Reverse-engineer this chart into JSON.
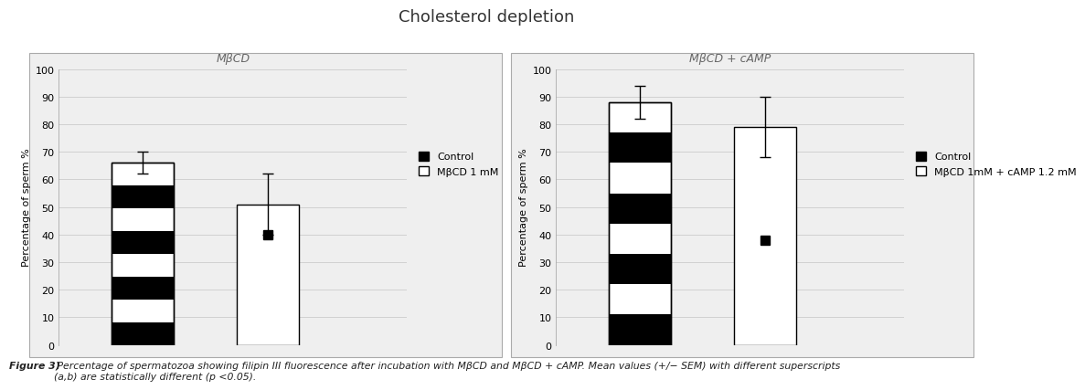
{
  "title": "Cholesterol depletion",
  "subplot1_title": "MβCD",
  "subplot2_title": "MβCD + cAMP",
  "ylabel": "Percentage of sperm %",
  "ylim": [
    0,
    100
  ],
  "yticks": [
    0,
    10,
    20,
    30,
    40,
    50,
    60,
    70,
    80,
    90,
    100
  ],
  "subplot1": {
    "bar1_value": 66,
    "bar1_error": 4,
    "bar2_value": 51,
    "bar2_error": 11,
    "bar2_marker": 40,
    "legend_label1": "Control",
    "legend_label2": "MβCD 1 mM"
  },
  "subplot2": {
    "bar1_value": 88,
    "bar1_error": 6,
    "bar2_value": 79,
    "bar2_error": 11,
    "bar2_marker": 38,
    "legend_label1": "Control",
    "legend_label2": "MβCD 1mM + cAMP 1.2 mM"
  },
  "bar_width": 0.45,
  "stripe_count": 8,
  "background_color": "#ffffff",
  "panel_bg": "#efefef",
  "grid_color": "#cccccc",
  "title_fontsize": 13,
  "subtitle_fontsize": 9,
  "axis_label_fontsize": 8,
  "tick_fontsize": 8,
  "legend_fontsize": 8,
  "caption_bold": "Figure 3)",
  "caption_italic": " Percentage of spermatozoa showing filipin III fluorescence after incubation with MβCD and MβCD + cAMP. Mean values (+/− SEM) with different superscripts\n(a,b) are statistically different (p <0.05)."
}
